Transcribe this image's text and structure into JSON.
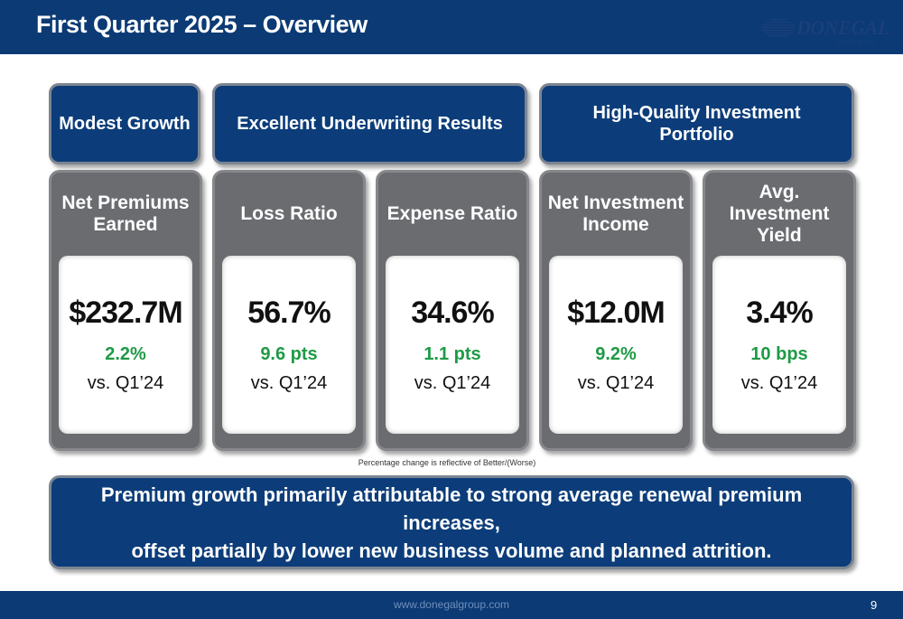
{
  "header": {
    "title": "First Quarter 2025 – Overview",
    "logo": {
      "name": "DONEGAL",
      "sub": "GROUP INC.",
      "icon": "striped-globe-icon"
    }
  },
  "categories": [
    {
      "label": "Modest Growth"
    },
    {
      "label": "Excellent Underwriting Results"
    },
    {
      "lines": [
        "High-Quality Investment",
        "Portfolio"
      ]
    }
  ],
  "metrics": [
    {
      "title_lines": [
        "Net Premiums",
        "Earned"
      ],
      "value": "$232.7M",
      "change": "2.2%",
      "compare": "vs. Q1’24"
    },
    {
      "title_lines": [
        "Loss Ratio"
      ],
      "value": "56.7%",
      "change": "9.6 pts",
      "compare": "vs. Q1’24"
    },
    {
      "title_lines": [
        "Expense Ratio"
      ],
      "value": "34.6%",
      "change": "1.1 pts",
      "compare": "vs. Q1’24"
    },
    {
      "title_lines": [
        "Net Investment",
        "Income"
      ],
      "value": "$12.0M",
      "change": "9.2%",
      "compare": "vs. Q1’24"
    },
    {
      "title_lines": [
        "Avg.",
        "Investment",
        "Yield"
      ],
      "value": "3.4%",
      "change": "10 bps",
      "compare": "vs. Q1’24"
    }
  ],
  "footnote": "Percentage change is reflective of Better/(Worse)",
  "summary": {
    "lines": [
      "Premium growth primarily attributable to strong average renewal premium increases,",
      "offset partially by lower new business volume and planned attrition."
    ]
  },
  "footer": {
    "url": "www.donegalgroup.com",
    "page_number": "9"
  },
  "colors": {
    "navy": "#0b3a74",
    "box_navy": "#0c3d7a",
    "card_gray": "#6a6c70",
    "positive_green": "#1f9a45"
  }
}
